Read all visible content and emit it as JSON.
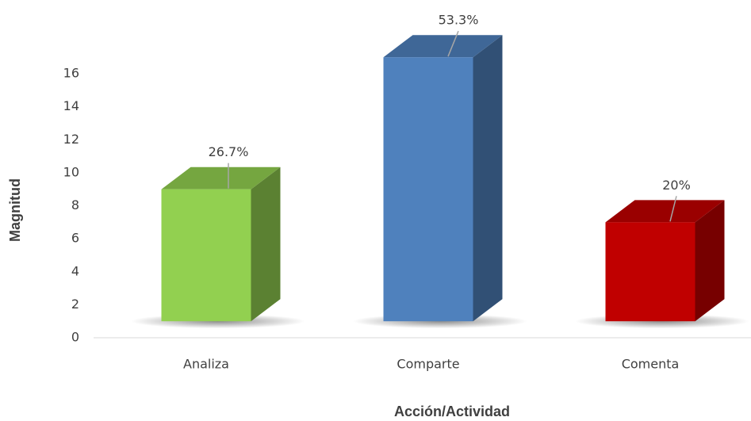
{
  "chart_data": {
    "type": "bar3d",
    "x_label": "Acción/Actividad",
    "y_label": "Magnitud",
    "categories": [
      "Analiza",
      "Comparte",
      "Comenta"
    ],
    "values": [
      8,
      16,
      6
    ],
    "data_labels": [
      {
        "value": 26.7,
        "label": "26.7%"
      },
      {
        "value": 53.3,
        "label": "53.3%"
      },
      {
        "value": 20,
        "label": "20%"
      }
    ],
    "colors": [
      "#92d050",
      "#4f81bd",
      "#c00000"
    ],
    "ylim": [
      0,
      16
    ],
    "yticks": [
      0,
      2,
      4,
      6,
      8,
      10,
      12,
      14,
      16
    ],
    "grid": false
  }
}
